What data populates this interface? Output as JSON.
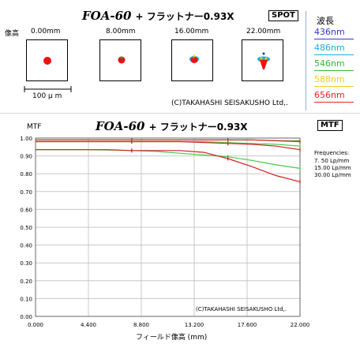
{
  "spot": {
    "title_model": "FOA-60",
    "title_sub": "+ フラットナー0.93X",
    "tag": "SPOT",
    "image_height_label": "像高",
    "field_labels": [
      "0.00mm",
      "8.00mm",
      "16.00mm",
      "22.00mm"
    ],
    "scale_label": "100 μ m",
    "copyright": "(C)TAKAHASHI SEISAKUSHO Ltd,."
  },
  "wavelengths": {
    "header": "波長",
    "items": [
      {
        "label": "436nm",
        "color": "#3333cc"
      },
      {
        "label": "486nm",
        "color": "#22aadd"
      },
      {
        "label": "546nm",
        "color": "#33bb33"
      },
      {
        "label": "588nm",
        "color": "#eecc22"
      },
      {
        "label": "656nm",
        "color": "#ee2222"
      }
    ]
  },
  "mtf": {
    "y_axis_title": "MTF",
    "title_model": "FOA-60",
    "title_sub": "+ フラットナー0.93X",
    "tag": "MTF",
    "frequencies_label": "Frequencies:",
    "frequency_items": [
      "7. 50 Lp/mm",
      "15.00 Lp/mm",
      "30.00 Lp/mm"
    ],
    "copyright": "(C)TAKAHASHI SEISAKUSHO Ltd,.",
    "x_axis_title": "フィールド像高 (mm)"
  },
  "chart_data": {
    "type": "line",
    "title": "FOA-60 + フラットナー0.93X",
    "xlabel": "フィールド像高 (mm)",
    "ylabel": "MTF",
    "xlim": [
      0,
      22
    ],
    "ylim": [
      0,
      1
    ],
    "x_ticks": [
      "0.000",
      "4.400",
      "8.800",
      "13.200",
      "17.600",
      "22.000"
    ],
    "y_ticks": [
      "0.00",
      "0.10",
      "0.20",
      "0.30",
      "0.40",
      "0.50",
      "0.60",
      "0.70",
      "0.80",
      "0.90",
      "1.00"
    ],
    "grid": true,
    "legend_position": "right",
    "x": [
      0,
      2,
      4,
      6,
      8,
      10,
      12,
      14,
      16,
      18,
      20,
      22
    ],
    "series": [
      {
        "name": "7. 50 Lp/mm",
        "tangential": [
          0.99,
          0.99,
          0.99,
          0.99,
          0.99,
          0.99,
          0.99,
          0.99,
          0.99,
          0.99,
          0.985,
          0.98
        ],
        "sagittal": [
          0.99,
          0.99,
          0.99,
          0.99,
          0.99,
          0.99,
          0.99,
          0.99,
          0.99,
          0.99,
          0.985,
          0.985
        ]
      },
      {
        "name": "15.00 Lp/mm",
        "tangential": [
          0.98,
          0.98,
          0.98,
          0.98,
          0.98,
          0.98,
          0.98,
          0.975,
          0.97,
          0.965,
          0.955,
          0.935
        ],
        "sagittal": [
          0.98,
          0.98,
          0.98,
          0.98,
          0.98,
          0.98,
          0.98,
          0.98,
          0.975,
          0.97,
          0.965,
          0.955
        ]
      },
      {
        "name": "30.00 Lp/mm",
        "tangential": [
          0.935,
          0.935,
          0.935,
          0.935,
          0.93,
          0.93,
          0.93,
          0.92,
          0.885,
          0.84,
          0.79,
          0.755
        ],
        "sagittal": [
          0.935,
          0.935,
          0.935,
          0.933,
          0.93,
          0.925,
          0.915,
          0.905,
          0.895,
          0.875,
          0.85,
          0.83
        ]
      }
    ]
  }
}
